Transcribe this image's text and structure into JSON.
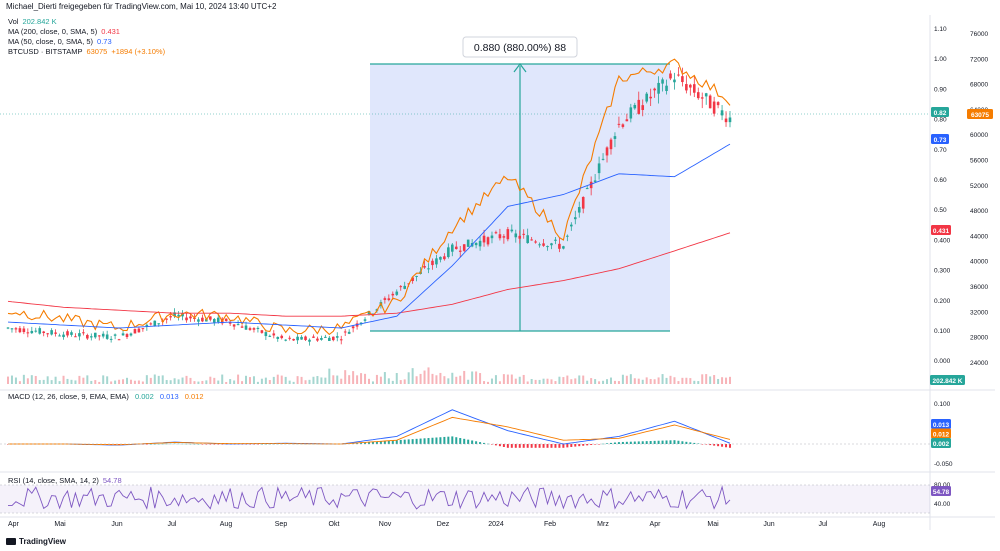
{
  "header": {
    "text": "Michael_Dierti freigegeben für TradingView.com, Mai 10, 2024 13:40 UTC+2"
  },
  "legend": {
    "vol": {
      "label": "Vol",
      "value": "202.842 K",
      "color": "#26a69a"
    },
    "ma200": {
      "label": "MA (200, close, 0, SMA, 5)",
      "value": "0.431",
      "color": "#f23645"
    },
    "ma50": {
      "label": "MA (50, close, 0, SMA, 5)",
      "value": "0.73",
      "color": "#2962ff"
    },
    "btc": {
      "label": "BTCUSD · BITSTAMP",
      "value": "63075",
      "change": "+1894 (+3.10%)",
      "color": "#f57c00"
    }
  },
  "measure": {
    "label": "0.880 (880.00%) 88"
  },
  "axes": {
    "left_ticks": [
      "1.10",
      "1.00",
      "0.90",
      "0.80",
      "0.70",
      "0.60",
      "0.50",
      "0.400",
      "0.300",
      "0.200",
      "0.100",
      "0.000"
    ],
    "right_ticks": [
      "76000",
      "72000",
      "68000",
      "64000",
      "60000",
      "56000",
      "52000",
      "48000",
      "44000",
      "40000",
      "36000",
      "32000",
      "28000",
      "24000"
    ],
    "x_ticks": [
      "Apr",
      "Mai",
      "Jun",
      "Jul",
      "Aug",
      "Sep",
      "Okt",
      "Nov",
      "Dez",
      "2024",
      "Feb",
      "Mrz",
      "Apr",
      "Mai",
      "Jun",
      "Jul",
      "Aug"
    ],
    "price_badges": [
      {
        "text": "0.82",
        "color": "#26a69a"
      },
      {
        "text": "63075",
        "color": "#f57c00"
      },
      {
        "text": "0.73",
        "color": "#2962ff"
      },
      {
        "text": "0.431",
        "color": "#f23645"
      },
      {
        "text": "202.842 K",
        "color": "#26a69a"
      }
    ]
  },
  "macd": {
    "label": "MACD (12, 26, close, 9, EMA, EMA)",
    "values": [
      "0.002",
      "0.013",
      "0.012"
    ],
    "ticks": [
      "0.100",
      "0.050",
      "0.000",
      "-0.050"
    ],
    "badges": [
      {
        "text": "0.013",
        "color": "#2962ff"
      },
      {
        "text": "0.012",
        "color": "#f57c00"
      },
      {
        "text": "0.002",
        "color": "#26a69a"
      }
    ]
  },
  "rsi": {
    "label": "RSI (14, close, SMA, 14, 2)",
    "value": "54.78",
    "ticks": [
      "80.00",
      "40.00"
    ],
    "badge": {
      "text": "54.78",
      "color": "#7e57c2"
    }
  },
  "footer": {
    "logo": "TradingView"
  },
  "chart_data": {
    "type": "line",
    "x_labels": [
      "Apr",
      "Mai",
      "Jun",
      "Jul",
      "Aug",
      "Sep",
      "Okt",
      "Nov",
      "Dez",
      "2024",
      "Feb",
      "Mrz",
      "Apr",
      "Mai"
    ],
    "series": [
      {
        "name": "BTCUSD",
        "values": [
          28500,
          27500,
          27000,
          30500,
          29500,
          26500,
          27000,
          34500,
          41500,
          44000,
          42000,
          62000,
          70000,
          63075
        ]
      },
      {
        "name": "MA (200, close, 0, SMA, 5)",
        "values": [
          0.2,
          0.18,
          0.17,
          0.16,
          0.16,
          0.15,
          0.15,
          0.16,
          0.19,
          0.24,
          0.27,
          0.31,
          0.37,
          0.431
        ]
      },
      {
        "name": "MA (50, close, 0, SMA, 5)",
        "values": [
          0.13,
          0.12,
          0.11,
          0.12,
          0.13,
          0.12,
          0.11,
          0.15,
          0.32,
          0.52,
          0.56,
          0.63,
          0.62,
          0.73
        ]
      }
    ],
    "measure_range": {
      "from": 0.1,
      "to": 1.0,
      "label": "0.880 (880.00%) 88"
    },
    "left_ylim": [
      0.0,
      1.1
    ],
    "right_ylim": [
      24000,
      76000
    ]
  }
}
